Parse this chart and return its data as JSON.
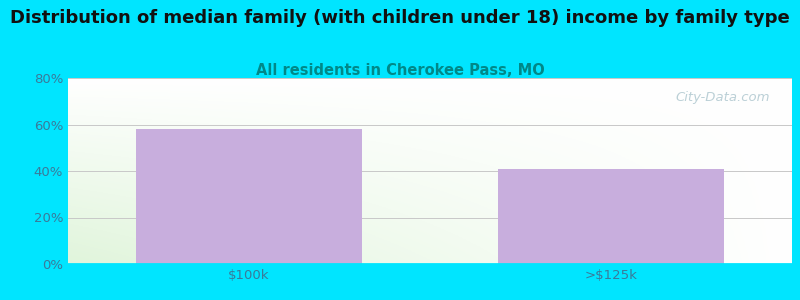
{
  "title": "Distribution of median family (with children under 18) income by family type",
  "subtitle": "All residents in Cherokee Pass, MO",
  "categories": [
    "$100k",
    ">$125k"
  ],
  "values": [
    58,
    41
  ],
  "bar_color": "#c8aedd",
  "bar_positions": [
    1,
    3
  ],
  "bar_width": 1.25,
  "ylim": [
    0,
    80
  ],
  "yticks": [
    0,
    20,
    40,
    60,
    80
  ],
  "ytick_labels": [
    "0%",
    "20%",
    "40%",
    "60%",
    "80%"
  ],
  "title_fontsize": 13,
  "subtitle_fontsize": 10.5,
  "subtitle_color": "#008888",
  "title_color": "#111111",
  "tick_color": "#3a7a9a",
  "background_outer": "#00e5ff",
  "grid_color": "#c8c8c8",
  "watermark_text": "City-Data.com",
  "watermark_color": "#b0c8d0"
}
